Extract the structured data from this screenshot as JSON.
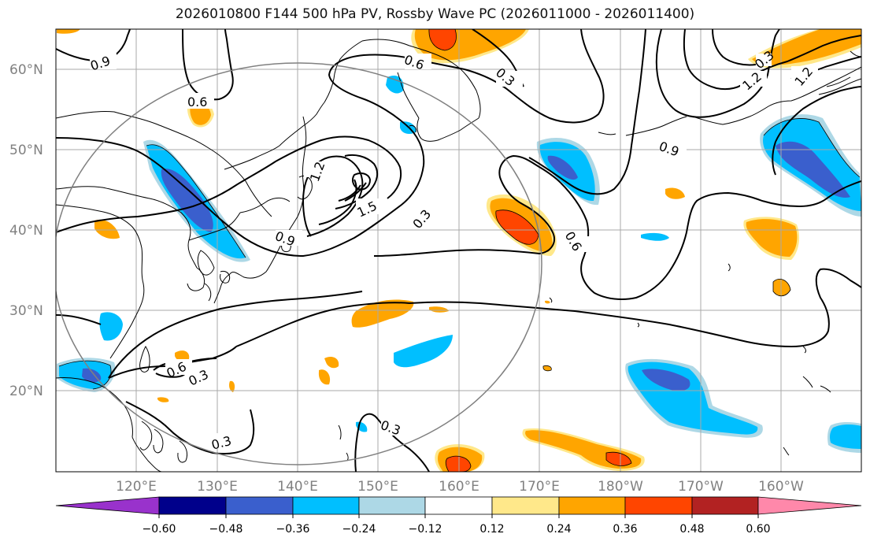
{
  "title": "2026010800 F144 500 hPa PV, Rossby Wave PC (2026011000 - 2026011400)",
  "map": {
    "lat_ticks": [
      "60°N",
      "50°N",
      "40°N",
      "30°N",
      "20°N"
    ],
    "lon_ticks": [
      "120°E",
      "130°E",
      "140°E",
      "150°E",
      "160°E",
      "170°E",
      "180°W",
      "170°W",
      "160°W"
    ],
    "contour_labels": [
      "0.9",
      "0.6",
      "0.6",
      "0.3",
      "1.2",
      "0.9",
      "0.3",
      "0.9",
      "1.2",
      "1.5",
      "0.3",
      "0.6",
      "0.6",
      "0.3",
      "0.3",
      "0.3",
      "1.2"
    ],
    "land_color": "#000000",
    "grid_color": "#a9a9a9",
    "circle_color": "#808080"
  },
  "colorbar": {
    "tick_labels": [
      "−0.60",
      "−0.48",
      "−0.36",
      "−0.24",
      "−0.12",
      "0.12",
      "0.24",
      "0.36",
      "0.48",
      "0.60"
    ],
    "colors": [
      "#9932cc",
      "#00008b",
      "#3a5fcd",
      "#00bfff",
      "#add8e6",
      "#ffffff",
      "#ffe88a",
      "#ffa500",
      "#ff4500",
      "#b22222",
      "#ff88aa"
    ]
  }
}
